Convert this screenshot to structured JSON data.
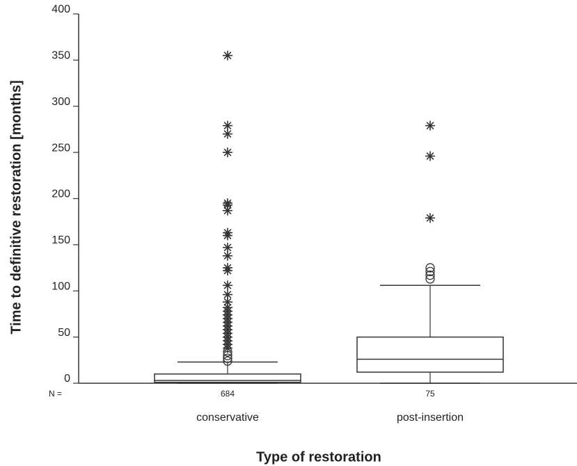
{
  "chart_data": {
    "type": "box",
    "x_label": "Type of restoration",
    "y_label": "Time to definitive restoration [months]",
    "categories": [
      "conservative",
      "post-insertion"
    ],
    "n_prefix": "N =",
    "n": [
      684,
      75
    ],
    "color": "#333333",
    "ylim": [
      0,
      400
    ],
    "yticks": [
      0,
      50,
      100,
      150,
      200,
      250,
      300,
      350,
      400
    ],
    "boxes": [
      {
        "min": 0,
        "q1": 1,
        "median": 3,
        "q3": 10,
        "max": 23,
        "outliers": [
          24,
          27,
          30,
          34
        ],
        "extremes": [
          355,
          279,
          270,
          250,
          195,
          193,
          187,
          163,
          160,
          147,
          138,
          125,
          122,
          106,
          96,
          88,
          82,
          78,
          74,
          70,
          66,
          62,
          58,
          54,
          50,
          46,
          42,
          38
        ]
      },
      {
        "min": 0,
        "q1": 12,
        "median": 26,
        "q3": 50,
        "max": 106,
        "outliers": [
          125,
          121,
          117,
          113
        ],
        "extremes": [
          279,
          246,
          179
        ]
      }
    ]
  }
}
